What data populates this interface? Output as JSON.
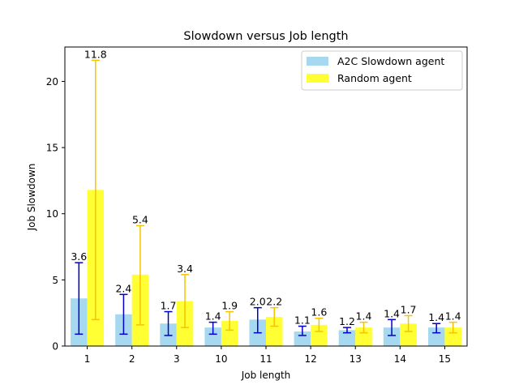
{
  "chart_data": {
    "type": "bar",
    "title": "Slowdown versus Job length",
    "xlabel": "Job length",
    "ylabel": "Job Slowdown",
    "categories": [
      "1",
      "2",
      "3",
      "10",
      "11",
      "12",
      "13",
      "14",
      "15"
    ],
    "ylim": [
      0,
      22.6
    ],
    "yticks": [
      0,
      5,
      10,
      15,
      20
    ],
    "grid": false,
    "legend_position": "top-right",
    "series": [
      {
        "name": "A2C Slowdown agent",
        "color": "#a6d9ef",
        "error_color": "#0000cc",
        "values": [
          3.6,
          2.4,
          1.7,
          1.4,
          2.0,
          1.1,
          1.2,
          1.4,
          1.4
        ],
        "labels": [
          "3.6",
          "2.4",
          "1.7",
          "1.4",
          "2.0",
          "1.1",
          "1.2",
          "1.4",
          "1.4"
        ],
        "err_low": [
          0.9,
          0.9,
          0.8,
          0.9,
          1.0,
          0.8,
          1.0,
          0.8,
          1.0
        ],
        "err_high": [
          6.3,
          3.9,
          2.6,
          1.8,
          2.9,
          1.5,
          1.4,
          2.0,
          1.7
        ]
      },
      {
        "name": "Random agent",
        "color": "#ffff33",
        "error_color": "#f5c400",
        "values": [
          11.8,
          5.4,
          3.4,
          1.9,
          2.2,
          1.6,
          1.4,
          1.7,
          1.4
        ],
        "labels": [
          "11.8",
          "5.4",
          "3.4",
          "1.9",
          "2.2",
          "1.6",
          "1.4",
          "1.7",
          "1.4"
        ],
        "err_low": [
          2.0,
          1.6,
          1.4,
          1.2,
          1.5,
          1.1,
          1.0,
          1.1,
          1.0
        ],
        "err_high": [
          21.6,
          9.1,
          5.4,
          2.6,
          2.9,
          2.1,
          1.8,
          2.3,
          1.8
        ]
      }
    ]
  }
}
